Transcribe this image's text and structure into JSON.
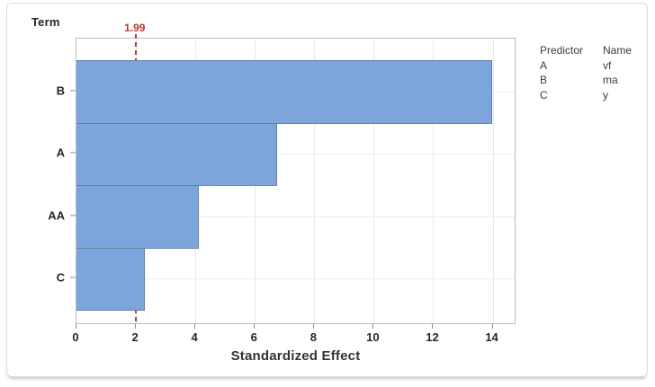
{
  "chart_data": {
    "type": "bar",
    "orientation": "horizontal",
    "title": "",
    "ylabel": "Term",
    "xlabel": "Standardized Effect",
    "categories": [
      "B",
      "A",
      "AA",
      "C"
    ],
    "values": [
      13.97,
      6.76,
      4.13,
      2.3
    ],
    "xlim": [
      0,
      14.8
    ],
    "xticks": [
      0,
      2,
      4,
      6,
      8,
      10,
      12,
      14
    ],
    "reference_line": {
      "value": 1.99,
      "label": "1.99"
    },
    "grid": "both",
    "legend_position": "right",
    "bar_color": "#7ca6db",
    "bar_border_color": "#66809e",
    "reference_color": "#c43a2e"
  },
  "legend": {
    "headers": [
      "Predictor",
      "Name"
    ],
    "rows": [
      {
        "predictor": "A",
        "name": "vf"
      },
      {
        "predictor": "B",
        "name": "ma"
      },
      {
        "predictor": "C",
        "name": "y"
      }
    ]
  }
}
